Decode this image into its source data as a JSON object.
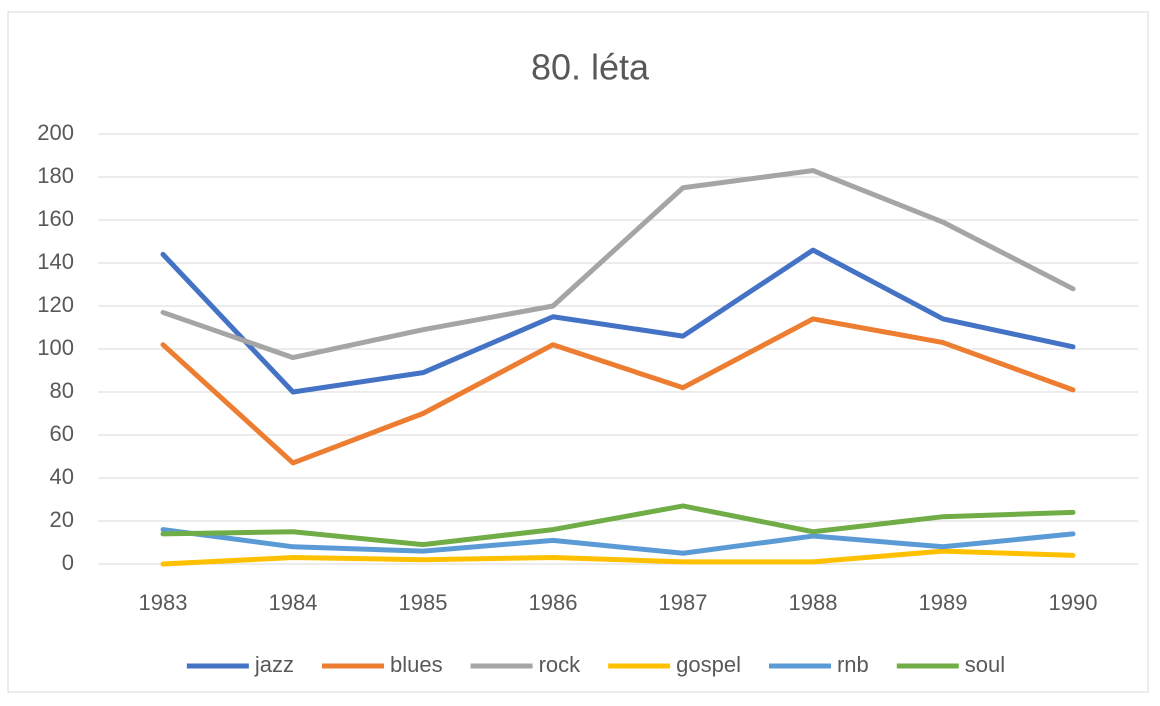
{
  "chart_data": {
    "type": "line",
    "title": "80. léta",
    "categories": [
      "1983",
      "1984",
      "1985",
      "1986",
      "1987",
      "1988",
      "1989",
      "1990"
    ],
    "series": [
      {
        "name": "jazz",
        "color": "#4472c4",
        "values": [
          144,
          80,
          89,
          115,
          106,
          146,
          114,
          101
        ]
      },
      {
        "name": "blues",
        "color": "#ed7d31",
        "values": [
          102,
          47,
          70,
          102,
          82,
          114,
          103,
          81
        ]
      },
      {
        "name": "rock",
        "color": "#a5a5a5",
        "values": [
          117,
          96,
          109,
          120,
          175,
          183,
          159,
          128
        ]
      },
      {
        "name": "gospel",
        "color": "#ffc000",
        "values": [
          0,
          3,
          2,
          3,
          1,
          1,
          6,
          4
        ]
      },
      {
        "name": "rnb",
        "color": "#5b9bd5",
        "values": [
          16,
          8,
          6,
          11,
          5,
          13,
          8,
          14
        ]
      },
      {
        "name": "soul",
        "color": "#70ad47",
        "values": [
          14,
          15,
          9,
          16,
          27,
          15,
          22,
          24
        ]
      }
    ],
    "ylim": [
      0,
      200
    ],
    "yticks": [
      0,
      20,
      40,
      60,
      80,
      100,
      120,
      140,
      160,
      180,
      200
    ],
    "grid": true,
    "legend": "bottom"
  }
}
